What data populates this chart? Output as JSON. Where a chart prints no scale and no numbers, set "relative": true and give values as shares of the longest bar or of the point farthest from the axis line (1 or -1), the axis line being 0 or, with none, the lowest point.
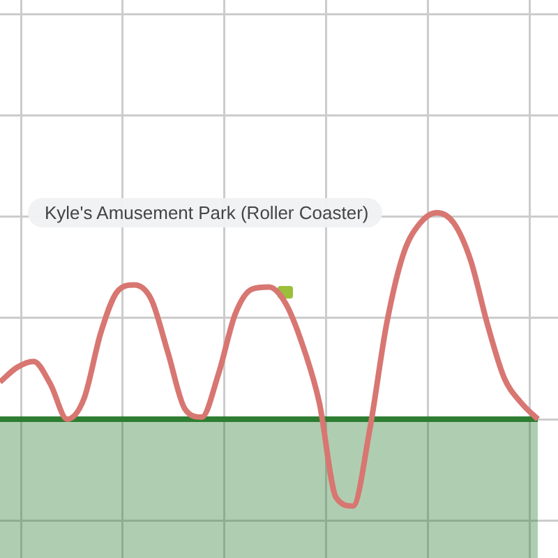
{
  "chart_data": {
    "type": "line",
    "title": "Kyle's Amusement Park (Roller Coaster)",
    "relative": true,
    "grid": true,
    "categories": [
      null,
      null,
      null,
      null,
      null,
      null,
      null,
      null,
      null,
      null,
      null,
      null,
      null,
      null,
      null,
      null,
      null,
      null,
      null,
      null,
      null,
      null,
      null,
      null,
      null,
      null,
      null,
      null,
      null,
      null,
      null,
      null,
      null
    ],
    "series": [
      {
        "type": "area",
        "color": "#2e7d32",
        "values": [
          0,
          0,
          0,
          0,
          0,
          0,
          0,
          0,
          0,
          0,
          0,
          0,
          0,
          0,
          0,
          0,
          0,
          0,
          0,
          0,
          0,
          0,
          0,
          0,
          0,
          0,
          0,
          0,
          0,
          0,
          0,
          0,
          0
        ]
      },
      {
        "color": "#d87672",
        "values": [
          0.18,
          0.25,
          0.28,
          0.17,
          0,
          0.1,
          0.42,
          0.62,
          0.65,
          0.58,
          0.32,
          0.05,
          0.01,
          0.22,
          0.51,
          0.63,
          0.64,
          0.56,
          0.36,
          0.08,
          -0.38,
          -0.42,
          -0.05,
          0.46,
          0.8,
          0.95,
          1,
          0.95,
          0.77,
          0.46,
          0.2,
          0.08,
          0
        ]
      }
    ]
  }
}
